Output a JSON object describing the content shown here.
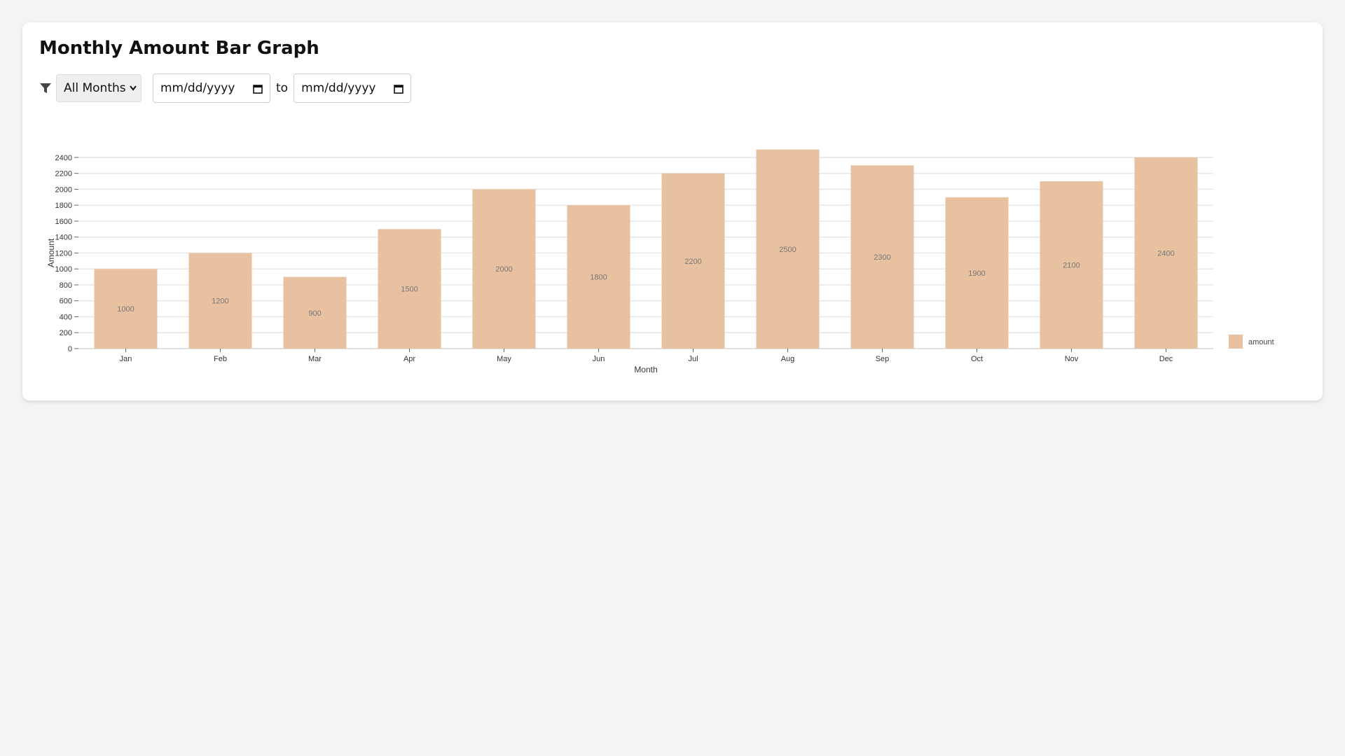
{
  "header": {
    "title": "Monthly Amount Bar Graph"
  },
  "filters": {
    "month_select_value": "All Months",
    "start_date_placeholder": "mm/dd/yyyy",
    "to_label": "to",
    "end_date_placeholder": "mm/dd/yyyy",
    "filter_icon": "filter-icon",
    "calendar_icon": "calendar-icon"
  },
  "chart_data": {
    "type": "bar",
    "categories": [
      "Jan",
      "Feb",
      "Mar",
      "Apr",
      "May",
      "Jun",
      "Jul",
      "Aug",
      "Sep",
      "Oct",
      "Nov",
      "Dec"
    ],
    "series": [
      {
        "name": "amount",
        "values": [
          1000,
          1200,
          900,
          1500,
          2000,
          1800,
          2200,
          2500,
          2300,
          1900,
          2100,
          2400
        ],
        "color": "#e8c1a0"
      }
    ],
    "xlabel": "Month",
    "ylabel": "Amount",
    "ylim": [
      0,
      2500
    ],
    "yticks": [
      0,
      200,
      400,
      600,
      800,
      1000,
      1200,
      1400,
      1600,
      1800,
      2000,
      2200,
      2400
    ],
    "grid": true,
    "legend": "right",
    "data_labels": true
  }
}
